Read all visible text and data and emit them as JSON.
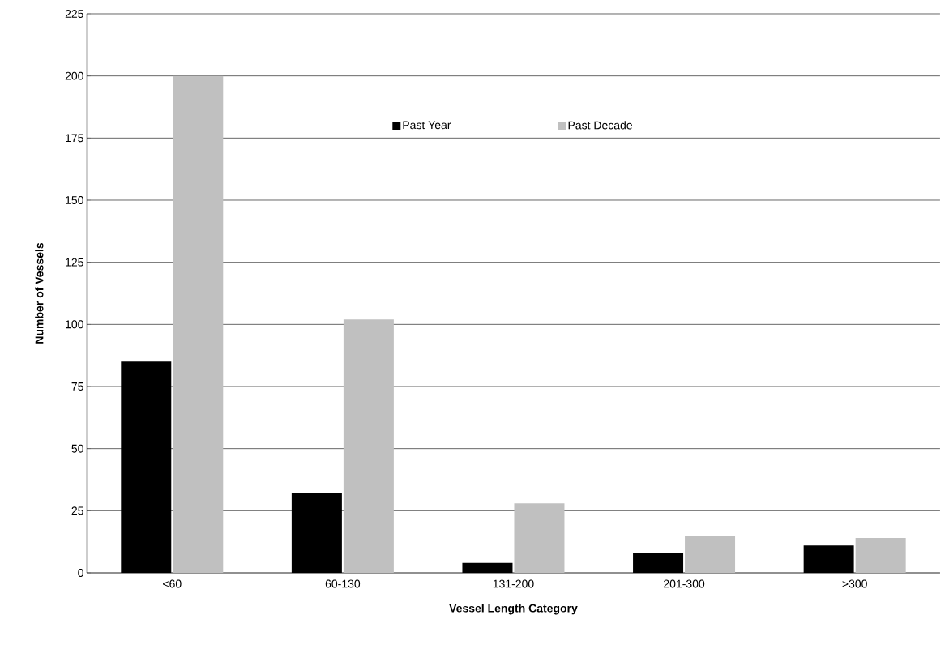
{
  "chart_data": {
    "type": "bar",
    "xlabel": "Vessel Length Category",
    "ylabel": "Number of Vessels",
    "categories": [
      "<60",
      "60-130",
      "131-200",
      "201-300",
      ">300"
    ],
    "series": [
      {
        "name": "Past Year",
        "color": "#000000",
        "values": [
          85,
          32,
          4,
          8,
          11
        ]
      },
      {
        "name": "Past Decade",
        "color": "#c0c0c0",
        "values": [
          200,
          102,
          28,
          15,
          14
        ]
      }
    ],
    "ylim": [
      0,
      225
    ],
    "yticks": [
      0,
      25,
      50,
      75,
      100,
      125,
      150,
      175,
      200,
      225
    ],
    "grid": "y",
    "legend": "top"
  }
}
